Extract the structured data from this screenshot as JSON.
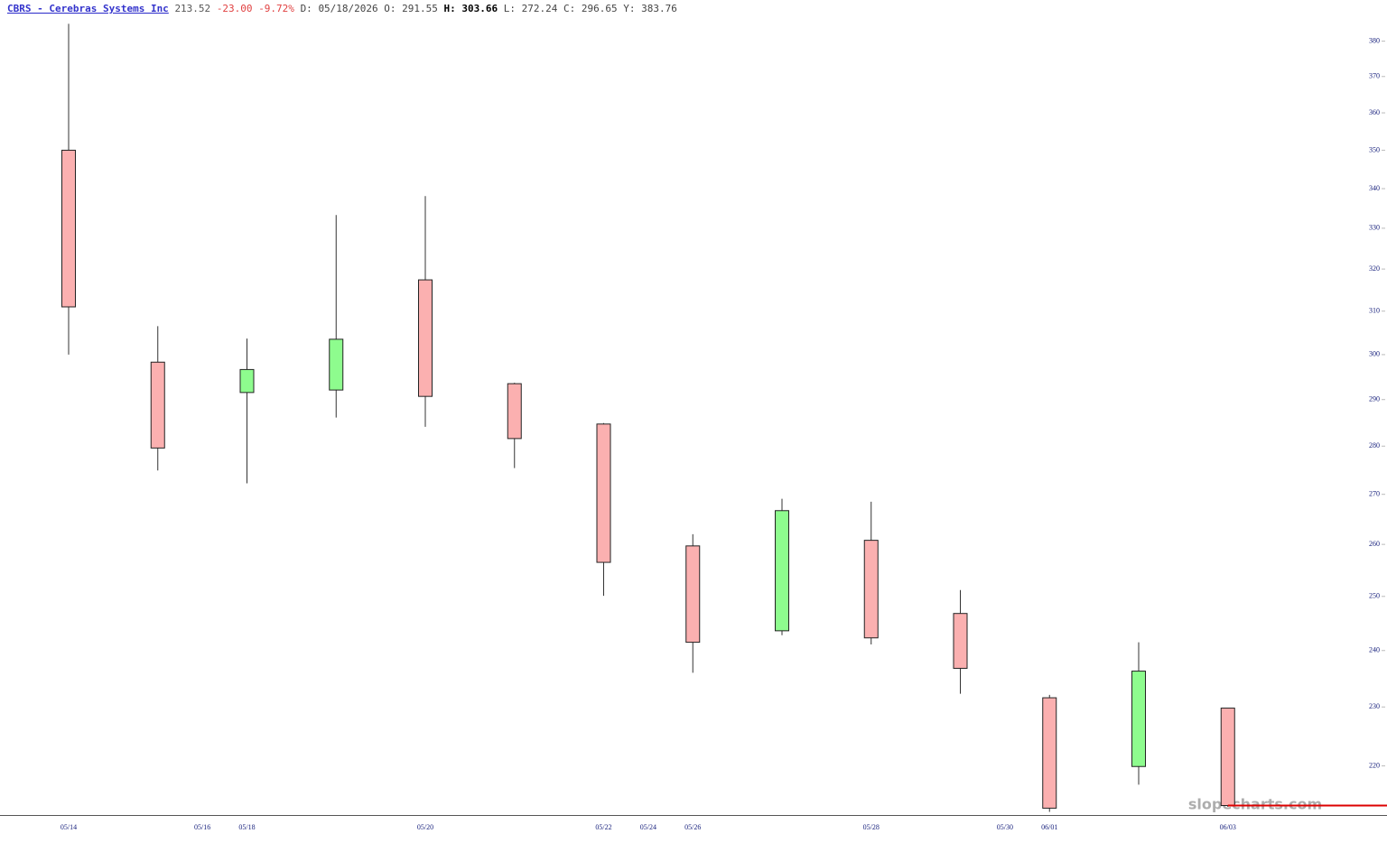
{
  "header": {
    "title": "CBRS - Cerebras Systems Inc",
    "change": "-23.00",
    "change_pct": "-9.72%",
    "date_label": "D:",
    "date": "05/18/2026",
    "open_label": "O:",
    "high_label": "H:",
    "low_label": "L:",
    "close_label": "C:",
    "y_label": "Y:",
    "y_value": "383.76"
  },
  "watermark": "slopecharts.com",
  "chart_data": {
    "type": "candlestick",
    "categories": [
      "05/14",
      null,
      "05/18",
      null,
      "05/20",
      null,
      "05/22",
      "05/26",
      null,
      "05/28",
      null,
      "06/01",
      null,
      "06/03"
    ],
    "gap_labels": [
      {
        "after": 1,
        "label": "05/16"
      },
      {
        "after": 6,
        "label": "05/24"
      },
      {
        "after": 10,
        "label": "05/30"
      }
    ],
    "open": [
      350.0,
      298.3,
      291.55,
      292.1,
      317.4,
      293.5,
      284.7,
      259.7,
      243.6,
      260.8,
      246.8,
      231.6,
      219.9,
      229.8
    ],
    "high": [
      385.0,
      306.5,
      303.66,
      333.3,
      338.1,
      293.7,
      284.9,
      262.0,
      269.1,
      268.5,
      251.2,
      232.1,
      241.5,
      229.8
    ],
    "low": [
      300.0,
      274.9,
      272.24,
      286.1,
      284.1,
      275.4,
      250.1,
      236.0,
      242.8,
      241.1,
      232.3,
      212.5,
      216.9,
      213.3
    ],
    "close": [
      311.0,
      279.6,
      296.65,
      303.5,
      290.7,
      281.6,
      256.5,
      241.5,
      266.7,
      242.3,
      236.8,
      213.1,
      236.3,
      213.52
    ],
    "up_color": "#8efc8e",
    "down_color": "#fbb0b0",
    "wick_color": "#333333",
    "last_line_color": "#dd0000",
    "log_scale": true,
    "ylim": [
      212,
      388
    ],
    "yticks": [
      220,
      230,
      240,
      250,
      260,
      270,
      280,
      290,
      300,
      310,
      320,
      330,
      340,
      350,
      360,
      370,
      380
    ]
  }
}
